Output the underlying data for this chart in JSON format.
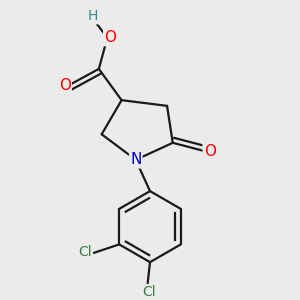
{
  "bg_color": "#ebebeb",
  "bond_color": "#1a1a1a",
  "bond_width": 1.6,
  "atom_colors": {
    "O": "#ff0000",
    "N": "#0000cd",
    "Cl": "#3a7d3a",
    "C": "#1a1a1a",
    "H": "#2e8b8b"
  },
  "font_size": 11,
  "figsize": [
    3.0,
    3.0
  ],
  "dpi": 100
}
